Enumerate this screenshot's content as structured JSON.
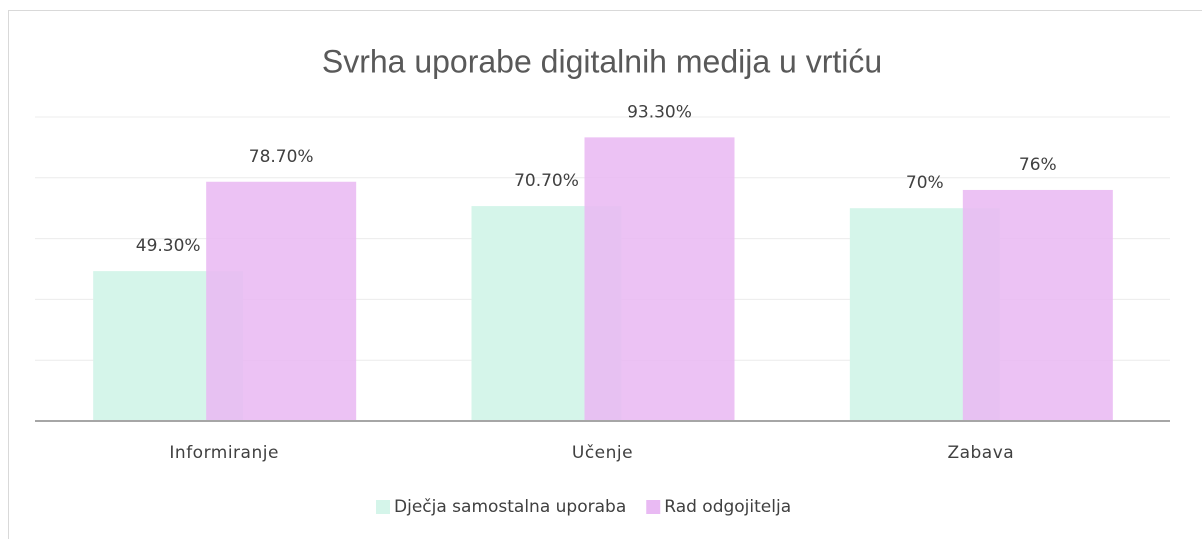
{
  "chart_data": {
    "type": "bar",
    "title": "Svrha uporabe digitalnih medija u vrtiću",
    "categories": [
      "Informiranje",
      "Učenje",
      "Zabava"
    ],
    "series": [
      {
        "name": "Dječja samostalna uporaba",
        "color": "#d5f5ea",
        "values": [
          49.3,
          70.7,
          70
        ],
        "value_labels": [
          "49.30%",
          "70.70%",
          "70%"
        ]
      },
      {
        "name": "Rad odgojitelja",
        "color": "#e9baf3",
        "values": [
          78.7,
          93.3,
          76
        ],
        "value_labels": [
          "78.70%",
          "93.30%",
          "76%"
        ]
      }
    ],
    "ylim": [
      0,
      100
    ],
    "yticks": [
      0,
      20,
      40,
      60,
      80,
      100
    ],
    "grid": true,
    "legend": "bottom"
  }
}
